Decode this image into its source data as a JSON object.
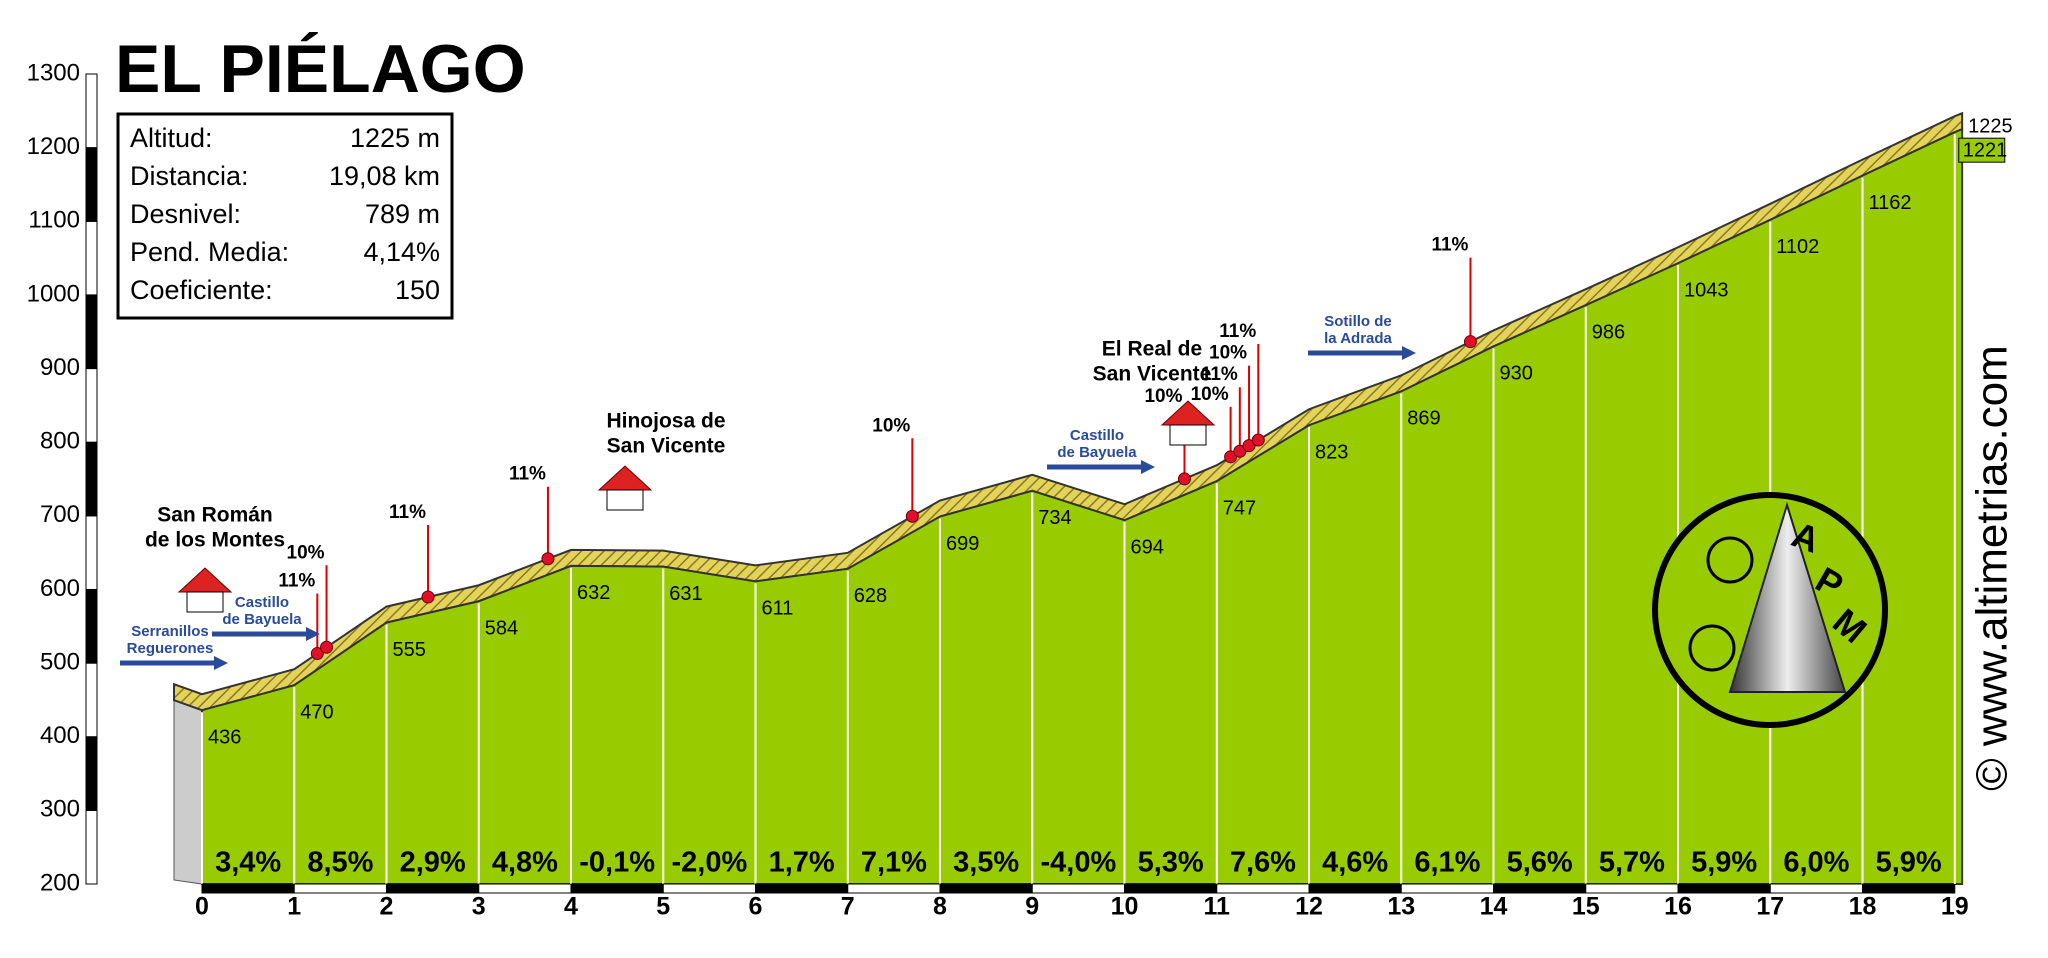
{
  "chart_data": {
    "type": "area",
    "title": "EL PIÉLAGO",
    "x": [
      0,
      1,
      2,
      3,
      4,
      5,
      6,
      7,
      8,
      9,
      10,
      11,
      12,
      13,
      14,
      15,
      16,
      17,
      18,
      19,
      19.08
    ],
    "values": [
      436,
      470,
      555,
      584,
      632,
      631,
      611,
      628,
      699,
      734,
      694,
      747,
      823,
      869,
      930,
      986,
      1043,
      1102,
      1162,
      1221,
      1225
    ],
    "color": "#99cc00",
    "xlim": [
      0,
      19.1
    ],
    "ylim": [
      200,
      1300
    ],
    "xticks": [
      0,
      1,
      2,
      3,
      4,
      5,
      6,
      7,
      8,
      9,
      10,
      11,
      12,
      13,
      14,
      15,
      16,
      17,
      18,
      19
    ],
    "yticks": [
      200,
      300,
      400,
      500,
      600,
      700,
      800,
      900,
      1000,
      1100,
      1200,
      1300
    ],
    "gradients": {
      "values": [
        3.4,
        8.5,
        2.9,
        4.8,
        -0.1,
        -2.0,
        1.7,
        7.1,
        3.5,
        -4.0,
        5.3,
        7.6,
        4.6,
        6.1,
        5.6,
        5.7,
        5.9,
        6.0,
        5.9
      ],
      "value_labels": [
        "3,4%",
        "8,5%",
        "2,9%",
        "4,8%",
        "-0,1%",
        "-2,0%",
        "1,7%",
        "7,1%",
        "3,5%",
        "-4,0%",
        "5,3%",
        "7,6%",
        "4,6%",
        "6,1%",
        "5,6%",
        "5,7%",
        "5,9%",
        "6,0%",
        "5,9%"
      ]
    },
    "steep_points": [
      {
        "x": 1.25,
        "label": "11%"
      },
      {
        "x": 1.35,
        "label": "10%"
      },
      {
        "x": 2.45,
        "label": "11%"
      },
      {
        "x": 3.75,
        "label": "11%"
      },
      {
        "x": 7.7,
        "label": "10%"
      },
      {
        "x": 10.65,
        "label": "10%"
      },
      {
        "x": 11.15,
        "label": "10%"
      },
      {
        "x": 11.25,
        "label": "11%"
      },
      {
        "x": 11.35,
        "label": "10%"
      },
      {
        "x": 11.45,
        "label": "11%"
      },
      {
        "x": 13.75,
        "label": "11%"
      }
    ],
    "places": [
      [
        "San Román",
        "de los Montes"
      ],
      [
        "Hinojosa de",
        "San Vicente"
      ],
      [
        "El Real de",
        "San Vicente"
      ]
    ],
    "roads": [
      [
        "Serranillos",
        "Reguerones"
      ],
      [
        "Castillo",
        "de Bayuela"
      ],
      [
        "Castillo",
        "de Bayuela"
      ],
      [
        "Sotillo de",
        "la Adrada"
      ]
    ]
  },
  "info": [
    {
      "label": "Altitud:",
      "value": "1225 m"
    },
    {
      "label": "Distancia:",
      "value": "19,08 km"
    },
    {
      "label": "Desnivel:",
      "value": "789 m"
    },
    {
      "label": "Pend. Media:",
      "value": "4,14%"
    },
    {
      "label": "Coeficiente:",
      "value": "150"
    }
  ],
  "watermark": "© www.altimetrias.com",
  "logo": [
    "A",
    "P",
    "M"
  ]
}
